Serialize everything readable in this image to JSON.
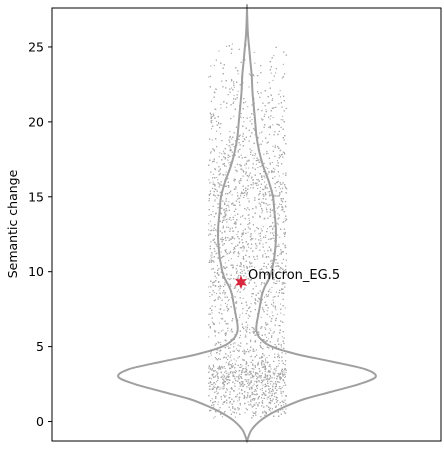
{
  "chart_data": {
    "type": "violin",
    "ylabel": "Semantic change",
    "ylim": [
      -1.3,
      27.6
    ],
    "yticks": [
      0,
      5,
      10,
      15,
      20,
      25
    ],
    "grid": false,
    "legend": "none",
    "colors": {
      "violin_outline": "#a0a0a0",
      "points": "#a9a9a9",
      "highlight": "#d7263d"
    },
    "violin_profile": [
      [
        -1.3,
        0.0
      ],
      [
        -0.6,
        0.03
      ],
      [
        0.0,
        0.09
      ],
      [
        0.5,
        0.17
      ],
      [
        1.0,
        0.28
      ],
      [
        1.5,
        0.42
      ],
      [
        2.0,
        0.62
      ],
      [
        2.5,
        0.82
      ],
      [
        3.0,
        0.94
      ],
      [
        3.5,
        0.86
      ],
      [
        4.0,
        0.62
      ],
      [
        4.5,
        0.36
      ],
      [
        5.0,
        0.18
      ],
      [
        5.5,
        0.1
      ],
      [
        6.0,
        0.07
      ],
      [
        6.5,
        0.07
      ],
      [
        7.0,
        0.08
      ],
      [
        7.5,
        0.09
      ],
      [
        8.0,
        0.1
      ],
      [
        8.5,
        0.11
      ],
      [
        9.0,
        0.13
      ],
      [
        9.5,
        0.16
      ],
      [
        10.0,
        0.18
      ],
      [
        10.5,
        0.19
      ],
      [
        11.0,
        0.2
      ],
      [
        12.0,
        0.21
      ],
      [
        13.0,
        0.21
      ],
      [
        14.0,
        0.2
      ],
      [
        15.0,
        0.19
      ],
      [
        16.0,
        0.16
      ],
      [
        17.0,
        0.12
      ],
      [
        18.0,
        0.09
      ],
      [
        19.0,
        0.07
      ],
      [
        20.0,
        0.06
      ],
      [
        21.0,
        0.05
      ],
      [
        22.0,
        0.04
      ],
      [
        23.0,
        0.035
      ],
      [
        24.0,
        0.025
      ],
      [
        25.0,
        0.015
      ],
      [
        26.0,
        0.006
      ],
      [
        27.6,
        0.0
      ]
    ],
    "point_density": [
      [
        0.3,
        3
      ],
      [
        1.0,
        7
      ],
      [
        2.0,
        9
      ],
      [
        2.5,
        13
      ],
      [
        3.0,
        16
      ],
      [
        3.5,
        13
      ],
      [
        4.0,
        8
      ],
      [
        5.0,
        5
      ],
      [
        7.0,
        4
      ],
      [
        9.0,
        5
      ],
      [
        11.0,
        6
      ],
      [
        13.0,
        7
      ],
      [
        15.0,
        7
      ],
      [
        17.0,
        5
      ],
      [
        19.0,
        4
      ],
      [
        21.0,
        3
      ],
      [
        23.0,
        1.5
      ],
      [
        24.5,
        0.6
      ],
      [
        25.5,
        0.2
      ]
    ],
    "highlight": {
      "label": "Omicron_EG.5",
      "y": 9.3
    }
  }
}
